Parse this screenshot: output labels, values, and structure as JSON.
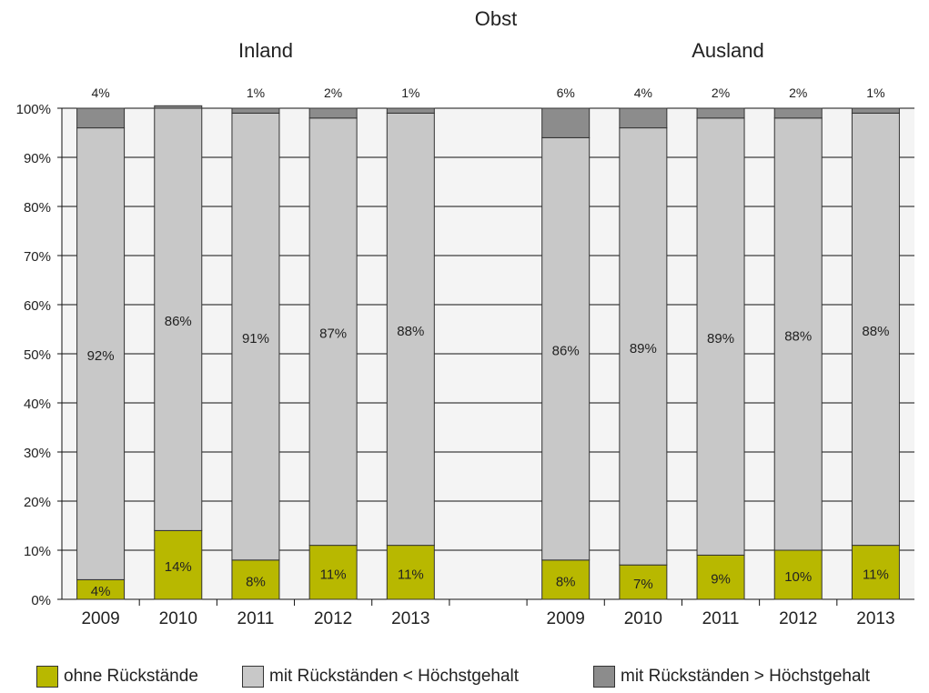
{
  "chart_data": {
    "type": "bar",
    "stacked": true,
    "title": "Obst",
    "groups": [
      {
        "name": "Inland",
        "categories": [
          "2009",
          "2010",
          "2011",
          "2012",
          "2013"
        ],
        "series": [
          {
            "name": "ohne Rückstände",
            "values": [
              4,
              14,
              8,
              11,
              11
            ],
            "labels": [
              "4%",
              "14%",
              "8%",
              "11%",
              "11%"
            ]
          },
          {
            "name": "mit Rückständen < Höchstgehalt",
            "values": [
              92,
              86,
              91,
              87,
              88
            ],
            "labels": [
              "92%",
              "86%",
              "91%",
              "87%",
              "88%"
            ]
          },
          {
            "name": "mit Rückständen > Höchstgehalt",
            "values": [
              4,
              0.5,
              1,
              2,
              1
            ],
            "labels": [
              "4%",
              "",
              "1%",
              "2%",
              "1%"
            ]
          }
        ]
      },
      {
        "name": "Ausland",
        "categories": [
          "2009",
          "2010",
          "2011",
          "2012",
          "2013"
        ],
        "series": [
          {
            "name": "ohne Rückstände",
            "values": [
              8,
              7,
              9,
              10,
              11
            ],
            "labels": [
              "8%",
              "7%",
              "9%",
              "10%",
              "11%"
            ]
          },
          {
            "name": "mit Rückständen < Höchstgehalt",
            "values": [
              86,
              89,
              89,
              88,
              88
            ],
            "labels": [
              "86%",
              "89%",
              "89%",
              "88%",
              "88%"
            ]
          },
          {
            "name": "mit Rückständen > Höchstgehalt",
            "values": [
              6,
              4,
              2,
              2,
              1
            ],
            "labels": [
              "6%",
              "4%",
              "2%",
              "2%",
              "1%"
            ]
          }
        ]
      }
    ],
    "ylim": [
      0,
      100
    ],
    "yticks": [
      "0%",
      "10%",
      "20%",
      "30%",
      "40%",
      "50%",
      "60%",
      "70%",
      "80%",
      "90%",
      "100%"
    ],
    "grid": true,
    "legend_position": "bottom",
    "colors": {
      "ohne Rückstände": "#b8b800",
      "mit Rückständen < Höchstgehalt": "#c8c8c8",
      "mit Rückständen > Höchstgehalt": "#8c8c8c",
      "plot_background": "#f4f4f4"
    }
  }
}
